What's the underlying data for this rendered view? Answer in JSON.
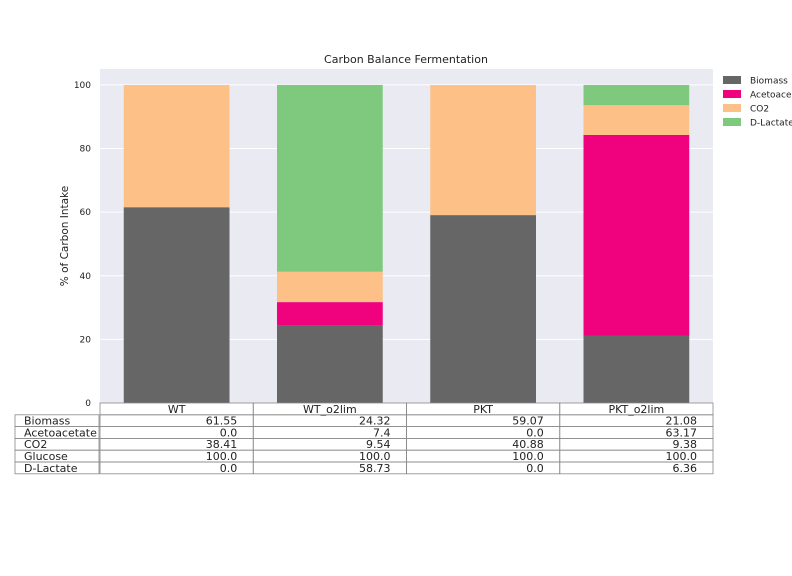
{
  "chart_data": {
    "type": "bar",
    "stacked": true,
    "title": "Carbon Balance Fermentation",
    "xlabel": "",
    "ylabel": "% of Carbon Intake",
    "ylim": [
      0,
      105
    ],
    "yticks": [
      0,
      20,
      40,
      60,
      80,
      100
    ],
    "grid": true,
    "legend_position": "right",
    "categories": [
      "WT",
      "WT_o2lim",
      "PKT",
      "PKT_o2lim"
    ],
    "series": [
      {
        "name": "Biomass",
        "legend_label": "Biomass",
        "color": "#666666",
        "values": [
          61.55,
          24.32,
          59.07,
          21.08
        ]
      },
      {
        "name": "Acetoacetate",
        "legend_label": "Acetoace",
        "color": "#f0027f",
        "values": [
          0.0,
          7.4,
          0.0,
          63.17
        ]
      },
      {
        "name": "CO2",
        "legend_label": "CO2",
        "color": "#fdc086",
        "values": [
          38.41,
          9.54,
          40.88,
          9.38
        ]
      },
      {
        "name": "D-Lactate",
        "legend_label": "D-Lactate",
        "color": "#7fc97f",
        "values": [
          0.0,
          58.73,
          0.0,
          6.36
        ]
      }
    ],
    "table": {
      "row_labels": [
        "Biomass",
        "Acetoacetate",
        "CO2",
        "Glucose",
        "D-Lactate"
      ],
      "cells": [
        [
          "61.55",
          "24.32",
          "59.07",
          "21.08"
        ],
        [
          "0.0",
          "7.4",
          "0.0",
          "63.17"
        ],
        [
          "38.41",
          "9.54",
          "40.88",
          "9.38"
        ],
        [
          "100.0",
          "100.0",
          "100.0",
          "100.0"
        ],
        [
          "0.0",
          "58.73",
          "0.0",
          "6.36"
        ]
      ]
    }
  }
}
